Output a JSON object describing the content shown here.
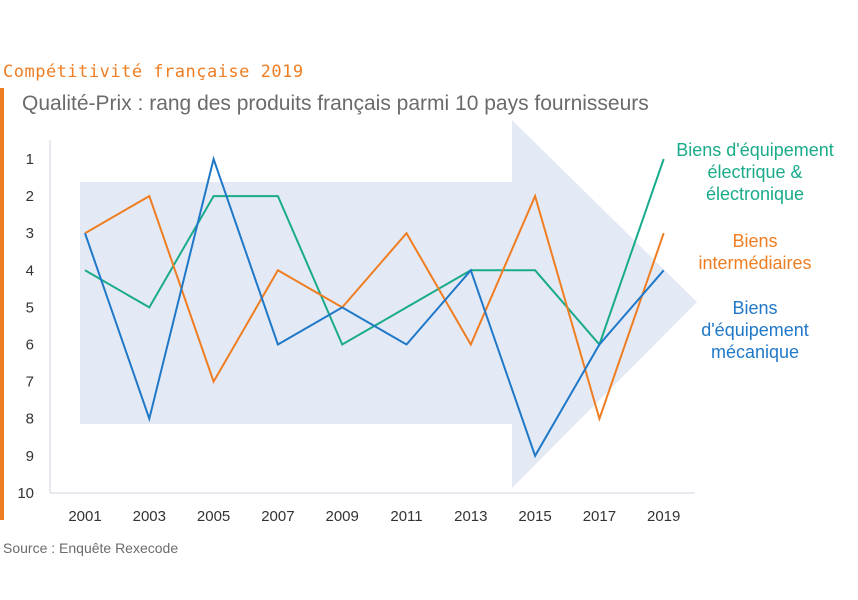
{
  "header": {
    "kicker": "Compétitivité française 2019",
    "subtitle": "Qualité-Prix : rang des produits français parmi 10 pays fournisseurs"
  },
  "source": "Source : Enquête Rexecode",
  "colors": {
    "accent": "#ef7d22",
    "electrique": "#1aab8a",
    "intermediaires": "#ef7d22",
    "mecanique": "#1f78c8",
    "arrow": "#e4eaf5",
    "axis": "#cfd6e3"
  },
  "chart_data": {
    "type": "line",
    "title": "Qualité-Prix : rang des produits français parmi 10 pays fournisseurs",
    "xlabel": "",
    "ylabel": "",
    "ylim": [
      1,
      10
    ],
    "y_inverted": true,
    "yticks": [
      1,
      2,
      3,
      4,
      5,
      6,
      7,
      8,
      9,
      10
    ],
    "categories": [
      "2001",
      "2003",
      "2005",
      "2007",
      "2009",
      "2011",
      "2013",
      "2015",
      "2017",
      "2019"
    ],
    "series": [
      {
        "name": "Biens d'équipement électrique & électronique",
        "label_lines": [
          "Biens d'équipement",
          "électrique &",
          "électronique"
        ],
        "color": "#1aab8a",
        "values": [
          4,
          5,
          2,
          2,
          6,
          5,
          4,
          4,
          6,
          1
        ]
      },
      {
        "name": "Biens intermédiaires",
        "label_lines": [
          "Biens",
          "intermédiaires"
        ],
        "color": "#ef7d22",
        "values": [
          3,
          2,
          7,
          4,
          5,
          3,
          6,
          2,
          8,
          3
        ]
      },
      {
        "name": "Biens d'équipement mécanique",
        "label_lines": [
          "Biens",
          "d'équipement",
          "mécanique"
        ],
        "color": "#1f78c8",
        "values": [
          3,
          8,
          1,
          6,
          5,
          6,
          4,
          9,
          6,
          4
        ]
      }
    ]
  }
}
